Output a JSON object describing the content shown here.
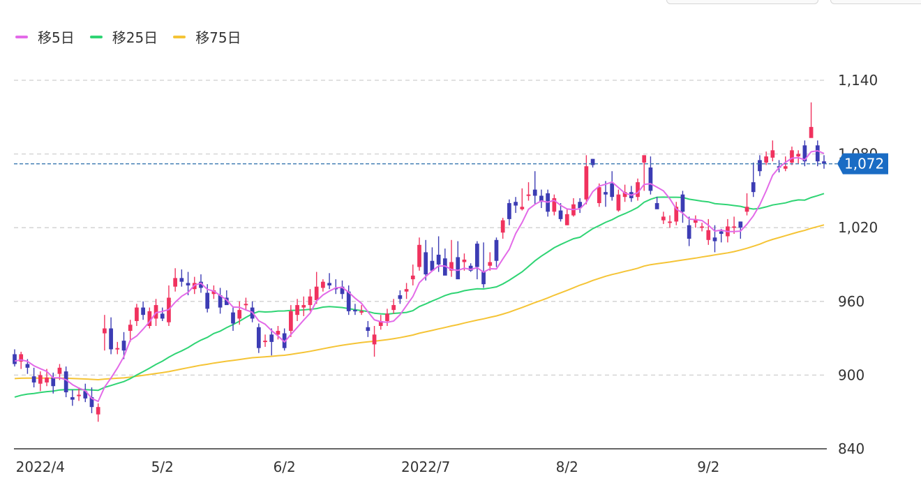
{
  "legend": [
    {
      "label": "移5日",
      "color": "#e36ae8"
    },
    {
      "label": "移25日",
      "color": "#2fd474"
    },
    {
      "label": "移75日",
      "color": "#f5c436"
    }
  ],
  "colors": {
    "up": "#f0325e",
    "down": "#3c3cb4",
    "grid": "#cfcfcf",
    "price_line": "#3a78b0",
    "price_tag_bg": "#1a6cc4",
    "price_tag_text": "#ffffff",
    "axis_text": "#333333",
    "axis_line": "#333333"
  },
  "chart_data": {
    "type": "candlestick",
    "yticks": [
      840,
      900,
      960,
      1020,
      1080,
      1140
    ],
    "ytick_labels": [
      "840",
      "900",
      "960",
      "1,020",
      "1,080",
      "1,140"
    ],
    "ylim": [
      840,
      1140
    ],
    "grid": true,
    "current_price": 1072,
    "current_price_label": "1,072",
    "x_labels": [
      {
        "index": 4,
        "label": "2022/4"
      },
      {
        "index": 23,
        "label": "5/2"
      },
      {
        "index": 42,
        "label": "6/2"
      },
      {
        "index": 64,
        "label": "2022/7"
      },
      {
        "index": 86,
        "label": "8/2"
      },
      {
        "index": 108,
        "label": "9/2"
      }
    ],
    "candles": [
      [
        917,
        909,
        921,
        907
      ],
      [
        911,
        917,
        919,
        905
      ],
      [
        909,
        906,
        913,
        901
      ],
      [
        899,
        894,
        906,
        890
      ],
      [
        893,
        900,
        903,
        887
      ],
      [
        894,
        898,
        905,
        891
      ],
      [
        898,
        891,
        902,
        885
      ],
      [
        901,
        906,
        909,
        896
      ],
      [
        903,
        886,
        907,
        882
      ],
      [
        882,
        880,
        888,
        875
      ],
      [
        884,
        884,
        890,
        879
      ],
      [
        887,
        881,
        893,
        878
      ],
      [
        882,
        874,
        890,
        869
      ],
      [
        868,
        874,
        877,
        862
      ],
      [
        934,
        938,
        949,
        920
      ],
      [
        938,
        921,
        947,
        917
      ],
      [
        921,
        922,
        927,
        917
      ],
      [
        928,
        920,
        935,
        913
      ],
      [
        936,
        941,
        945,
        927
      ],
      [
        944,
        955,
        958,
        940
      ],
      [
        955,
        949,
        960,
        945
      ],
      [
        940,
        952,
        955,
        938
      ],
      [
        946,
        957,
        962,
        940
      ],
      [
        950,
        946,
        955,
        944
      ],
      [
        943,
        963,
        973,
        940
      ],
      [
        972,
        979,
        987,
        968
      ],
      [
        979,
        976,
        986,
        972
      ],
      [
        975,
        973,
        984,
        965
      ],
      [
        970,
        975,
        980,
        966
      ],
      [
        976,
        971,
        982,
        967
      ],
      [
        967,
        954,
        974,
        951
      ],
      [
        966,
        969,
        973,
        962
      ],
      [
        965,
        955,
        971,
        950
      ],
      [
        963,
        957,
        969,
        958
      ],
      [
        951,
        942,
        956,
        936
      ],
      [
        946,
        953,
        960,
        941
      ],
      [
        958,
        958,
        963,
        953
      ],
      [
        955,
        946,
        960,
        943
      ],
      [
        939,
        922,
        942,
        918
      ],
      [
        928,
        928,
        933,
        923
      ],
      [
        933,
        927,
        938,
        916
      ],
      [
        933,
        936,
        940,
        929
      ],
      [
        934,
        922,
        938,
        920
      ],
      [
        936,
        952,
        957,
        931
      ],
      [
        949,
        957,
        962,
        944
      ],
      [
        955,
        957,
        964,
        948
      ],
      [
        957,
        964,
        970,
        952
      ],
      [
        961,
        972,
        984,
        958
      ],
      [
        971,
        976,
        978,
        968
      ],
      [
        975,
        973,
        983,
        970
      ],
      [
        971,
        970,
        978,
        966
      ],
      [
        972,
        966,
        977,
        962
      ],
      [
        968,
        952,
        973,
        949
      ],
      [
        953,
        952,
        958,
        949
      ],
      [
        952,
        952,
        957,
        949
      ],
      [
        939,
        936,
        944,
        931
      ],
      [
        925,
        933,
        940,
        915
      ],
      [
        940,
        944,
        949,
        937
      ],
      [
        944,
        950,
        954,
        940
      ],
      [
        953,
        957,
        962,
        950
      ],
      [
        965,
        962,
        969,
        958
      ],
      [
        968,
        970,
        975,
        962
      ],
      [
        978,
        981,
        990,
        973
      ],
      [
        988,
        1006,
        1012,
        985
      ],
      [
        1000,
        982,
        1010,
        977
      ],
      [
        993,
        985,
        1004,
        988
      ],
      [
        998,
        990,
        1013,
        984
      ],
      [
        995,
        981,
        1003,
        985
      ],
      [
        985,
        992,
        1010,
        980
      ],
      [
        996,
        978,
        1009,
        980
      ],
      [
        992,
        994,
        999,
        985
      ],
      [
        989,
        985,
        991,
        984
      ],
      [
        1007,
        988,
        1009,
        978
      ],
      [
        984,
        974,
        1008,
        971
      ],
      [
        989,
        992,
        1000,
        985
      ],
      [
        1010,
        993,
        1012,
        988
      ],
      [
        1016,
        1026,
        1028,
        1011
      ],
      [
        1040,
        1027,
        1043,
        1022
      ],
      [
        1041,
        1038,
        1045,
        1032
      ],
      [
        1035,
        1037,
        1052,
        1034
      ],
      [
        1046,
        1047,
        1057,
        1042
      ],
      [
        1051,
        1046,
        1066,
        1039
      ],
      [
        1046,
        1041,
        1051,
        1036
      ],
      [
        1048,
        1033,
        1051,
        1029
      ],
      [
        1033,
        1044,
        1047,
        1030
      ],
      [
        1034,
        1027,
        1040,
        1025
      ],
      [
        1022,
        1031,
        1035,
        1022
      ],
      [
        1030,
        1039,
        1044,
        1029
      ],
      [
        1041,
        1036,
        1044,
        1032
      ],
      [
        1043,
        1070,
        1079,
        1039
      ],
      [
        1076,
        1071,
        1076,
        1069
      ],
      [
        1040,
        1053,
        1056,
        1037
      ],
      [
        1049,
        1047,
        1058,
        1037
      ],
      [
        1056,
        1045,
        1066,
        1042
      ],
      [
        1034,
        1047,
        1051,
        1033
      ],
      [
        1045,
        1049,
        1055,
        1041
      ],
      [
        1049,
        1044,
        1054,
        1041
      ],
      [
        1045,
        1057,
        1060,
        1042
      ],
      [
        1073,
        1079,
        1079,
        1050
      ],
      [
        1069,
        1050,
        1078,
        1047
      ],
      [
        1040,
        1035,
        1045,
        1036
      ],
      [
        1026,
        1029,
        1033,
        1023
      ],
      [
        1024,
        1025,
        1030,
        1020
      ],
      [
        1025,
        1037,
        1041,
        1022
      ],
      [
        1047,
        1033,
        1050,
        1024
      ],
      [
        1022,
        1011,
        1029,
        1005
      ],
      [
        1024,
        1027,
        1030,
        1020
      ],
      [
        1021,
        1021,
        1024,
        1017
      ],
      [
        1010,
        1018,
        1027,
        1006
      ],
      [
        1012,
        1009,
        1022,
        1000
      ],
      [
        1017,
        1015,
        1019,
        1008
      ],
      [
        1013,
        1021,
        1027,
        1008
      ],
      [
        1021,
        1021,
        1029,
        1015
      ],
      [
        1025,
        1020,
        1025,
        1011
      ],
      [
        1033,
        1037,
        1048,
        1030
      ],
      [
        1057,
        1049,
        1073,
        1045
      ],
      [
        1075,
        1066,
        1079,
        1062
      ],
      [
        1073,
        1078,
        1082,
        1071
      ],
      [
        1077,
        1083,
        1091,
        1074
      ],
      [
        1070,
        1069,
        1075,
        1065
      ],
      [
        1068,
        1070,
        1078,
        1066
      ],
      [
        1073,
        1083,
        1086,
        1071
      ],
      [
        1078,
        1080,
        1083,
        1072
      ],
      [
        1087,
        1074,
        1091,
        1070
      ],
      [
        1093,
        1102,
        1122,
        1099
      ],
      [
        1087,
        1074,
        1091,
        1070
      ],
      [
        1074,
        1072,
        1079,
        1068
      ]
    ]
  }
}
